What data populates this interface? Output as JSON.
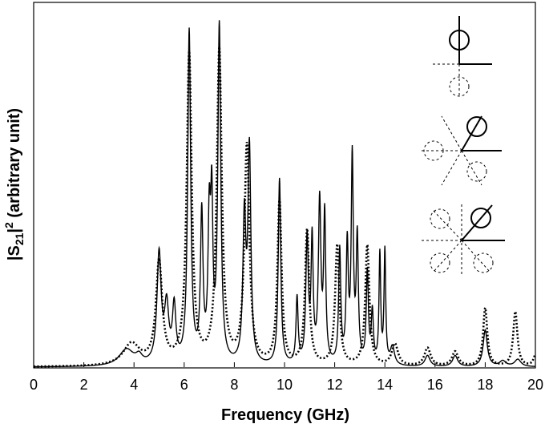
{
  "chart_data": {
    "type": "line",
    "title": "",
    "xlabel": "Frequency (GHz)",
    "ylabel": {
      "prefix": "|S",
      "subscript": "21",
      "mid": "|",
      "superscript": "2",
      "suffix": " (arbitrary unit)"
    },
    "xlim": [
      0,
      20
    ],
    "ylim": [
      0,
      1
    ],
    "x_ticks": [
      "0",
      "2",
      "4",
      "6",
      "8",
      "10",
      "12",
      "14",
      "16",
      "18",
      "20"
    ],
    "y_ticks": [],
    "grid": false,
    "legend": "none",
    "series": [
      {
        "style": "solid",
        "color": "#000000",
        "peaks": [
          [
            3.7,
            0.045,
            0.35
          ],
          [
            4.2,
            0.02,
            0.15
          ],
          [
            5.0,
            0.3,
            0.1
          ],
          [
            5.3,
            0.15,
            0.1
          ],
          [
            5.6,
            0.15,
            0.08
          ],
          [
            6.2,
            0.91,
            0.07
          ],
          [
            6.7,
            0.4,
            0.06
          ],
          [
            7.0,
            0.37,
            0.06
          ],
          [
            7.1,
            0.39,
            0.05
          ],
          [
            7.4,
            0.92,
            0.07
          ],
          [
            8.4,
            0.39,
            0.07
          ],
          [
            8.6,
            0.58,
            0.07
          ],
          [
            9.8,
            0.51,
            0.06
          ],
          [
            10.5,
            0.18,
            0.05
          ],
          [
            10.9,
            0.34,
            0.06
          ],
          [
            11.1,
            0.33,
            0.05
          ],
          [
            11.4,
            0.44,
            0.06
          ],
          [
            11.6,
            0.4,
            0.05
          ],
          [
            12.2,
            0.31,
            0.05
          ],
          [
            12.5,
            0.32,
            0.05
          ],
          [
            12.7,
            0.56,
            0.05
          ],
          [
            12.9,
            0.34,
            0.05
          ],
          [
            13.3,
            0.25,
            0.05
          ],
          [
            13.5,
            0.14,
            0.05
          ],
          [
            13.8,
            0.3,
            0.04
          ],
          [
            14.0,
            0.31,
            0.04
          ],
          [
            14.3,
            0.05,
            0.1
          ],
          [
            15.7,
            0.03,
            0.12
          ],
          [
            16.8,
            0.03,
            0.12
          ],
          [
            18.0,
            0.1,
            0.1
          ],
          [
            18.7,
            0.015,
            0.15
          ],
          [
            19.3,
            0.02,
            0.15
          ]
        ]
      },
      {
        "style": "dotted",
        "color": "#000000",
        "peaks": [
          [
            3.9,
            0.06,
            0.4
          ],
          [
            5.0,
            0.28,
            0.15
          ],
          [
            6.2,
            0.85,
            0.12
          ],
          [
            7.4,
            0.86,
            0.12
          ],
          [
            8.5,
            0.6,
            0.12
          ],
          [
            9.8,
            0.45,
            0.1
          ],
          [
            10.9,
            0.37,
            0.1
          ],
          [
            12.1,
            0.33,
            0.1
          ],
          [
            13.3,
            0.33,
            0.1
          ],
          [
            14.4,
            0.06,
            0.15
          ],
          [
            15.7,
            0.05,
            0.15
          ],
          [
            16.8,
            0.04,
            0.15
          ],
          [
            18.0,
            0.16,
            0.1
          ],
          [
            19.2,
            0.15,
            0.1
          ],
          [
            20.0,
            0.03,
            0.1
          ]
        ]
      }
    ]
  }
}
